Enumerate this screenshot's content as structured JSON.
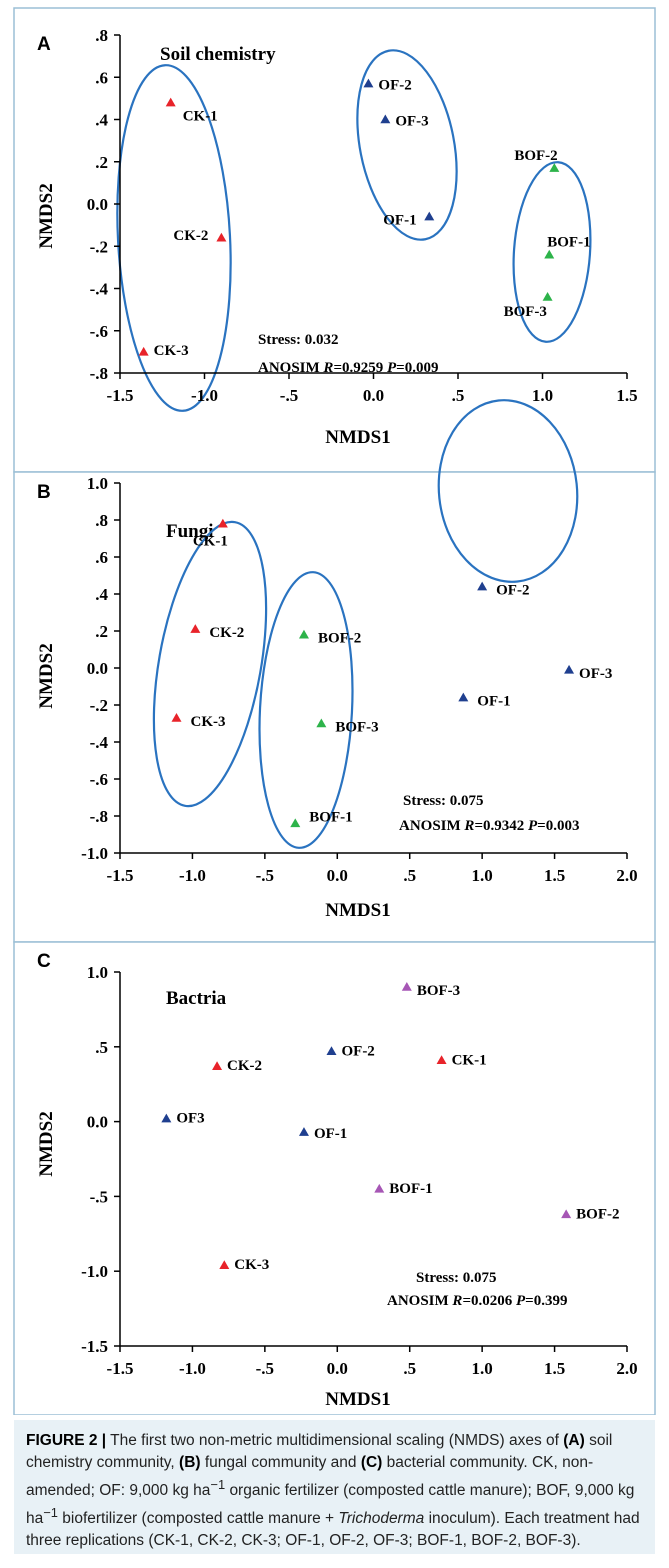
{
  "figure": {
    "caption": {
      "fig_label": "FIGURE 2 |",
      "lead": "The first two non-metric multidimensional scaling (NMDS) axes of",
      "a_tag": "(A)",
      "a_text": "soil chemistry community,",
      "b_tag": "(B)",
      "b_text": "fungal community and",
      "c_tag": "(C)",
      "c_text": "bacterial community. CK, non-amended; OF: 9,000 kg ha",
      "unit_exp": "−1",
      "of_tail": "organic fertilizer (composted cattle manure); BOF, 9,000 kg ha",
      "bof_tail": "biofertilizer (composted cattle manure +",
      "organism": "Trichoderma",
      "tail": "inoculum). Each treatment had three replications (CK-1, CK-2, CK-3; OF-1, OF-2, OF-3; BOF-1, BOF-2, BOF-3)."
    }
  },
  "colors": {
    "red": "#e8232a",
    "blue": "#1f3f8f",
    "green": "#2db34a",
    "purple": "#a656b5",
    "ellipse": "#2a73c0"
  },
  "chart_data": [
    {
      "type": "scatter",
      "panel": "A",
      "title": "Soil chemistry",
      "xlabel": "NMDS1",
      "ylabel": "NMDS2",
      "xlim": [
        -1.5,
        1.5
      ],
      "ylim": [
        -0.8,
        0.8
      ],
      "xticks": [
        -1.5,
        -1.0,
        -0.5,
        0.0,
        0.5,
        1.0,
        1.5
      ],
      "xtick_labels": [
        "-1.5",
        "-1.0",
        "-.5",
        "0.0",
        ".5",
        "1.0",
        "1.5"
      ],
      "yticks": [
        0.8,
        0.6,
        0.4,
        0.2,
        0.0,
        -0.2,
        -0.4,
        -0.6,
        -0.8
      ],
      "ytick_labels": [
        ".8",
        ".6",
        ".4",
        ".2",
        "0.0",
        "-.2",
        "-.4",
        "-.6",
        "-.8"
      ],
      "points": [
        {
          "label": "CK-1",
          "x": -1.2,
          "y": 0.48,
          "group": "red"
        },
        {
          "label": "CK-2",
          "x": -0.9,
          "y": -0.16,
          "group": "red"
        },
        {
          "label": "CK-3",
          "x": -1.36,
          "y": -0.7,
          "group": "red"
        },
        {
          "label": "OF-1",
          "x": 0.33,
          "y": -0.06,
          "group": "blue"
        },
        {
          "label": "OF-2",
          "x": -0.03,
          "y": 0.57,
          "group": "blue"
        },
        {
          "label": "OF-3",
          "x": 0.07,
          "y": 0.4,
          "group": "blue"
        },
        {
          "label": "BOF-1",
          "x": 1.04,
          "y": -0.24,
          "group": "green"
        },
        {
          "label": "BOF-2",
          "x": 1.07,
          "y": 0.17,
          "group": "green"
        },
        {
          "label": "BOF-3",
          "x": 1.03,
          "y": -0.44,
          "group": "green"
        }
      ],
      "stress": "Stress: 0.032",
      "anosim": {
        "prefix": "ANOSIM ",
        "r_sym": "R",
        "r_val": "=0.9259 ",
        "p_sym": "P",
        "p_val": "=0.009"
      }
    },
    {
      "type": "scatter",
      "panel": "B",
      "title": "Fungi",
      "xlabel": "NMDS1",
      "ylabel": "NMDS2",
      "xlim": [
        -1.5,
        2.0
      ],
      "ylim": [
        -1.0,
        1.0
      ],
      "xticks": [
        -1.5,
        -1.0,
        -0.5,
        0.0,
        0.5,
        1.0,
        1.5,
        2.0
      ],
      "xtick_labels": [
        "-1.5",
        "-1.0",
        "-.5",
        "0.0",
        ".5",
        "1.0",
        "1.5",
        "2.0"
      ],
      "yticks": [
        1.0,
        0.8,
        0.6,
        0.4,
        0.2,
        0.0,
        -0.2,
        -0.4,
        -0.6,
        -0.8,
        -1.0
      ],
      "ytick_labels": [
        "1.0",
        ".8",
        ".6",
        ".4",
        ".2",
        "0.0",
        "-.2",
        "-.4",
        "-.6",
        "-.8",
        "-1.0"
      ],
      "points": [
        {
          "label": "CK-1",
          "x": -0.79,
          "y": 0.78,
          "group": "red"
        },
        {
          "label": "CK-2",
          "x": -0.98,
          "y": 0.21,
          "group": "red"
        },
        {
          "label": "CK-3",
          "x": -1.11,
          "y": -0.27,
          "group": "red"
        },
        {
          "label": "BOF-1",
          "x": -0.29,
          "y": -0.84,
          "group": "green"
        },
        {
          "label": "BOF-2",
          "x": -0.23,
          "y": 0.18,
          "group": "green"
        },
        {
          "label": "BOF-3",
          "x": -0.11,
          "y": -0.3,
          "group": "green"
        },
        {
          "label": "OF-1",
          "x": 0.87,
          "y": -0.16,
          "group": "blue"
        },
        {
          "label": "OF-2",
          "x": 1.0,
          "y": 0.44,
          "group": "blue"
        },
        {
          "label": "OF-3",
          "x": 1.6,
          "y": -0.01,
          "group": "blue"
        }
      ],
      "stress": "Stress: 0.075",
      "anosim": {
        "prefix": "ANOSIM ",
        "r_sym": "R",
        "r_val": "=0.9342 ",
        "p_sym": "P",
        "p_val": "=0.003"
      }
    },
    {
      "type": "scatter",
      "panel": "C",
      "title": "Bactria",
      "xlabel": "NMDS1",
      "ylabel": "NMDS2",
      "xlim": [
        -1.5,
        2.0
      ],
      "ylim": [
        -1.5,
        1.0
      ],
      "xticks": [
        -1.5,
        -1.0,
        -0.5,
        0.0,
        0.5,
        1.0,
        1.5,
        2.0
      ],
      "xtick_labels": [
        "-1.5",
        "-1.0",
        "-.5",
        "0.0",
        ".5",
        "1.0",
        "1.5",
        "2.0"
      ],
      "yticks": [
        1.0,
        0.5,
        0.0,
        -0.5,
        -1.0,
        -1.5
      ],
      "ytick_labels": [
        "1.0",
        ".5",
        "0.0",
        "-.5",
        "-1.0",
        "-1.5"
      ],
      "points": [
        {
          "label": "BOF-3",
          "x": 0.48,
          "y": 0.9,
          "group": "purple"
        },
        {
          "label": "CK-1",
          "x": 0.72,
          "y": 0.41,
          "group": "red"
        },
        {
          "label": "OF-2",
          "x": -0.04,
          "y": 0.47,
          "group": "blue"
        },
        {
          "label": "CK-2",
          "x": -0.83,
          "y": 0.37,
          "group": "red"
        },
        {
          "label": "OF3",
          "x": -1.18,
          "y": 0.02,
          "group": "blue"
        },
        {
          "label": "OF-1",
          "x": -0.23,
          "y": -0.07,
          "group": "blue"
        },
        {
          "label": "BOF-1",
          "x": 0.29,
          "y": -0.45,
          "group": "purple"
        },
        {
          "label": "BOF-2",
          "x": 1.58,
          "y": -0.62,
          "group": "purple"
        },
        {
          "label": "CK-3",
          "x": -0.78,
          "y": -0.96,
          "group": "red"
        }
      ],
      "stress": "Stress: 0.075",
      "anosim": {
        "prefix": "ANOSIM ",
        "r_sym": "R",
        "r_val": "=0.0206 ",
        "p_sym": "P",
        "p_val": "=0.399"
      }
    }
  ]
}
